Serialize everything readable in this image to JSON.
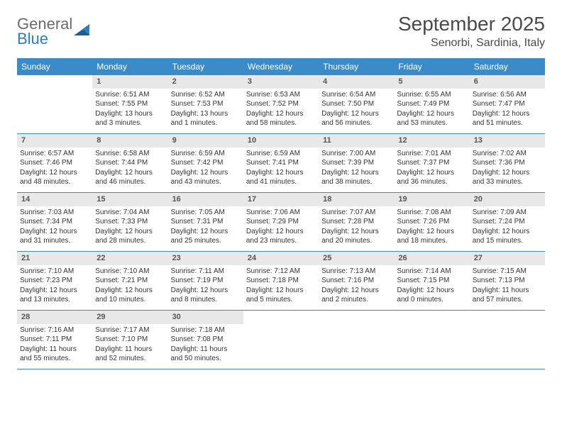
{
  "logo": {
    "line1": "General",
    "line2": "Blue"
  },
  "title": "September 2025",
  "location": "Senorbi, Sardinia, Italy",
  "colors": {
    "header_bg": "#3b8bc8",
    "header_text": "#ffffff",
    "daynum_bg": "#e8e8e8",
    "row_border": "#3b8bc8",
    "logo_gray": "#6b6b6b",
    "logo_blue": "#2a7fbf",
    "title_color": "#4a4a4a"
  },
  "weekdays": [
    "Sunday",
    "Monday",
    "Tuesday",
    "Wednesday",
    "Thursday",
    "Friday",
    "Saturday"
  ],
  "weeks": [
    [
      null,
      {
        "n": "1",
        "sunrise": "Sunrise: 6:51 AM",
        "sunset": "Sunset: 7:55 PM",
        "day": "Daylight: 13 hours and 3 minutes."
      },
      {
        "n": "2",
        "sunrise": "Sunrise: 6:52 AM",
        "sunset": "Sunset: 7:53 PM",
        "day": "Daylight: 13 hours and 1 minutes."
      },
      {
        "n": "3",
        "sunrise": "Sunrise: 6:53 AM",
        "sunset": "Sunset: 7:52 PM",
        "day": "Daylight: 12 hours and 58 minutes."
      },
      {
        "n": "4",
        "sunrise": "Sunrise: 6:54 AM",
        "sunset": "Sunset: 7:50 PM",
        "day": "Daylight: 12 hours and 56 minutes."
      },
      {
        "n": "5",
        "sunrise": "Sunrise: 6:55 AM",
        "sunset": "Sunset: 7:49 PM",
        "day": "Daylight: 12 hours and 53 minutes."
      },
      {
        "n": "6",
        "sunrise": "Sunrise: 6:56 AM",
        "sunset": "Sunset: 7:47 PM",
        "day": "Daylight: 12 hours and 51 minutes."
      }
    ],
    [
      {
        "n": "7",
        "sunrise": "Sunrise: 6:57 AM",
        "sunset": "Sunset: 7:46 PM",
        "day": "Daylight: 12 hours and 48 minutes."
      },
      {
        "n": "8",
        "sunrise": "Sunrise: 6:58 AM",
        "sunset": "Sunset: 7:44 PM",
        "day": "Daylight: 12 hours and 46 minutes."
      },
      {
        "n": "9",
        "sunrise": "Sunrise: 6:59 AM",
        "sunset": "Sunset: 7:42 PM",
        "day": "Daylight: 12 hours and 43 minutes."
      },
      {
        "n": "10",
        "sunrise": "Sunrise: 6:59 AM",
        "sunset": "Sunset: 7:41 PM",
        "day": "Daylight: 12 hours and 41 minutes."
      },
      {
        "n": "11",
        "sunrise": "Sunrise: 7:00 AM",
        "sunset": "Sunset: 7:39 PM",
        "day": "Daylight: 12 hours and 38 minutes."
      },
      {
        "n": "12",
        "sunrise": "Sunrise: 7:01 AM",
        "sunset": "Sunset: 7:37 PM",
        "day": "Daylight: 12 hours and 36 minutes."
      },
      {
        "n": "13",
        "sunrise": "Sunrise: 7:02 AM",
        "sunset": "Sunset: 7:36 PM",
        "day": "Daylight: 12 hours and 33 minutes."
      }
    ],
    [
      {
        "n": "14",
        "sunrise": "Sunrise: 7:03 AM",
        "sunset": "Sunset: 7:34 PM",
        "day": "Daylight: 12 hours and 31 minutes."
      },
      {
        "n": "15",
        "sunrise": "Sunrise: 7:04 AM",
        "sunset": "Sunset: 7:33 PM",
        "day": "Daylight: 12 hours and 28 minutes."
      },
      {
        "n": "16",
        "sunrise": "Sunrise: 7:05 AM",
        "sunset": "Sunset: 7:31 PM",
        "day": "Daylight: 12 hours and 25 minutes."
      },
      {
        "n": "17",
        "sunrise": "Sunrise: 7:06 AM",
        "sunset": "Sunset: 7:29 PM",
        "day": "Daylight: 12 hours and 23 minutes."
      },
      {
        "n": "18",
        "sunrise": "Sunrise: 7:07 AM",
        "sunset": "Sunset: 7:28 PM",
        "day": "Daylight: 12 hours and 20 minutes."
      },
      {
        "n": "19",
        "sunrise": "Sunrise: 7:08 AM",
        "sunset": "Sunset: 7:26 PM",
        "day": "Daylight: 12 hours and 18 minutes."
      },
      {
        "n": "20",
        "sunrise": "Sunrise: 7:09 AM",
        "sunset": "Sunset: 7:24 PM",
        "day": "Daylight: 12 hours and 15 minutes."
      }
    ],
    [
      {
        "n": "21",
        "sunrise": "Sunrise: 7:10 AM",
        "sunset": "Sunset: 7:23 PM",
        "day": "Daylight: 12 hours and 13 minutes."
      },
      {
        "n": "22",
        "sunrise": "Sunrise: 7:10 AM",
        "sunset": "Sunset: 7:21 PM",
        "day": "Daylight: 12 hours and 10 minutes."
      },
      {
        "n": "23",
        "sunrise": "Sunrise: 7:11 AM",
        "sunset": "Sunset: 7:19 PM",
        "day": "Daylight: 12 hours and 8 minutes."
      },
      {
        "n": "24",
        "sunrise": "Sunrise: 7:12 AM",
        "sunset": "Sunset: 7:18 PM",
        "day": "Daylight: 12 hours and 5 minutes."
      },
      {
        "n": "25",
        "sunrise": "Sunrise: 7:13 AM",
        "sunset": "Sunset: 7:16 PM",
        "day": "Daylight: 12 hours and 2 minutes."
      },
      {
        "n": "26",
        "sunrise": "Sunrise: 7:14 AM",
        "sunset": "Sunset: 7:15 PM",
        "day": "Daylight: 12 hours and 0 minutes."
      },
      {
        "n": "27",
        "sunrise": "Sunrise: 7:15 AM",
        "sunset": "Sunset: 7:13 PM",
        "day": "Daylight: 11 hours and 57 minutes."
      }
    ],
    [
      {
        "n": "28",
        "sunrise": "Sunrise: 7:16 AM",
        "sunset": "Sunset: 7:11 PM",
        "day": "Daylight: 11 hours and 55 minutes."
      },
      {
        "n": "29",
        "sunrise": "Sunrise: 7:17 AM",
        "sunset": "Sunset: 7:10 PM",
        "day": "Daylight: 11 hours and 52 minutes."
      },
      {
        "n": "30",
        "sunrise": "Sunrise: 7:18 AM",
        "sunset": "Sunset: 7:08 PM",
        "day": "Daylight: 11 hours and 50 minutes."
      },
      null,
      null,
      null,
      null
    ]
  ]
}
